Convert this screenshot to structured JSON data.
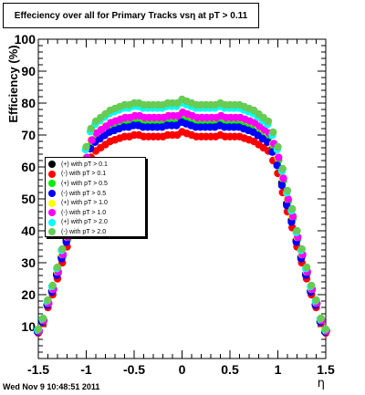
{
  "title": "Effeciency over all for Primary Tracks vsη at pT > 0.11",
  "timestamp": "Wed Nov  9 10:48:51 2011",
  "chart_data": {
    "type": "scatter",
    "title": "Effeciency over all for Primary Tracks vsη at pT > 0.11",
    "xlabel": "η",
    "ylabel": "Efficiency (%)",
    "xlim": [
      -1.5,
      1.5
    ],
    "ylim": [
      0,
      100
    ],
    "x_ticks": [
      -1.5,
      -1,
      -0.5,
      0,
      0.5,
      1,
      1.5
    ],
    "x_tick_labels": [
      "-1.5",
      "-1",
      "-0.5",
      "0",
      "0.5",
      "1",
      "1.5"
    ],
    "y_ticks": [
      10,
      20,
      30,
      40,
      50,
      60,
      70,
      80,
      90,
      100
    ],
    "y_tick_labels": [
      "10",
      "20",
      "30",
      "40",
      "50",
      "60",
      "70",
      "80",
      "90",
      "100"
    ],
    "grid": false,
    "legend_position": "left",
    "series": [
      {
        "name": "(+) with pT > 0.1",
        "color": "#000000",
        "peak": 74
      },
      {
        "name": "(-) with pT > 0.1",
        "color": "#ff0000",
        "peak": 70
      },
      {
        "name": "(+) with pT > 0.5",
        "color": "#00ee00",
        "peak": 75
      },
      {
        "name": "(-) with pT > 0.5",
        "color": "#0000ff",
        "peak": 73
      },
      {
        "name": "(+) with pT > 1.0",
        "color": "#ffff00",
        "peak": 76
      },
      {
        "name": "(-) with pT > 1.0",
        "color": "#ff00ff",
        "peak": 76
      },
      {
        "name": "(+) with pT > 2.0",
        "color": "#00ffff",
        "peak": 79
      },
      {
        "name": "(-) with pT > 2.0",
        "color": "#66cc55",
        "peak": 80
      }
    ],
    "profile": {
      "x": [
        -1.5,
        -1.45,
        -1.4,
        -1.35,
        -1.3,
        -1.25,
        -1.2,
        -1.15,
        -1.1,
        -1.05,
        -1.0,
        -0.95,
        -0.9,
        -0.85,
        -0.8,
        -0.75,
        -0.7,
        -0.65,
        -0.6,
        -0.55,
        -0.5,
        -0.45,
        -0.4,
        -0.35,
        -0.3,
        -0.25,
        -0.2,
        -0.15,
        -0.1,
        -0.05,
        0.0,
        0.05,
        0.1,
        0.15,
        0.2,
        0.25,
        0.3,
        0.35,
        0.4,
        0.45,
        0.5,
        0.55,
        0.6,
        0.65,
        0.7,
        0.75,
        0.8,
        0.85,
        0.9,
        0.95,
        1.0,
        1.05,
        1.1,
        1.15,
        1.2,
        1.25,
        1.3,
        1.35,
        1.4,
        1.45,
        1.5
      ],
      "y": [
        8,
        11,
        16,
        20,
        25,
        30,
        35,
        40,
        46,
        52,
        58,
        63,
        65,
        66,
        67,
        68,
        68.5,
        69,
        69.5,
        69.5,
        70,
        70,
        69.5,
        69.5,
        69.5,
        69.5,
        69.5,
        70,
        70,
        70,
        71,
        70.5,
        70,
        69.5,
        69.5,
        69.5,
        69.5,
        69.5,
        70,
        69.5,
        69.5,
        69.5,
        69.5,
        69,
        68.5,
        68,
        67,
        66,
        65,
        62,
        58,
        52,
        46,
        41,
        35,
        30,
        25,
        20,
        16,
        11,
        8
      ]
    }
  }
}
